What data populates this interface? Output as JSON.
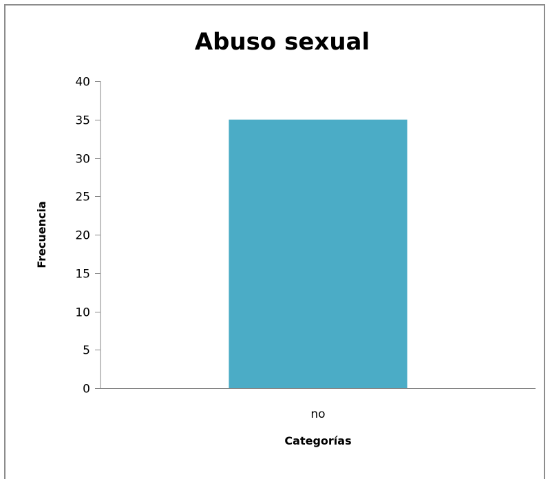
{
  "chart_data": {
    "type": "bar",
    "title": "Abuso sexual",
    "xlabel": "Categorías",
    "ylabel": "Frecuencia",
    "categories": [
      "no"
    ],
    "values": [
      35
    ],
    "ylim": [
      0,
      40
    ],
    "ytick_step": 5,
    "grid": false,
    "legend": "none",
    "bar_color": "#4bacc6",
    "axis_color": "#868686"
  }
}
